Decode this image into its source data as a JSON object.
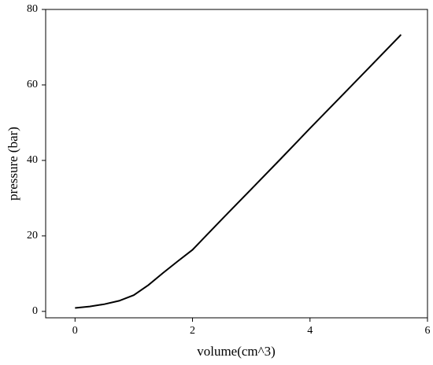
{
  "chart_data": {
    "type": "line",
    "x_label": "volume(cm^3)",
    "y_label": "pressure (bar)",
    "x": [
      0,
      0.25,
      0.5,
      0.75,
      1,
      1.25,
      1.5,
      1.75,
      2,
      2.5,
      3,
      3.5,
      4,
      4.5,
      5,
      5.55
    ],
    "series": [
      {
        "color": "#000000",
        "values": [
          0.9,
          1.3,
          1.9,
          2.8,
          4.3,
          7,
          10.2,
          13.3,
          16.3,
          24.4,
          32.4,
          40.4,
          48.5,
          56.5,
          64.5,
          73.3
        ]
      }
    ],
    "xlim": [
      -0.5,
      6
    ],
    "xticks": [
      0,
      2,
      4,
      6
    ],
    "ylim": [
      -1.7,
      80
    ],
    "yticks": [
      0,
      20,
      40,
      60,
      80
    ]
  }
}
